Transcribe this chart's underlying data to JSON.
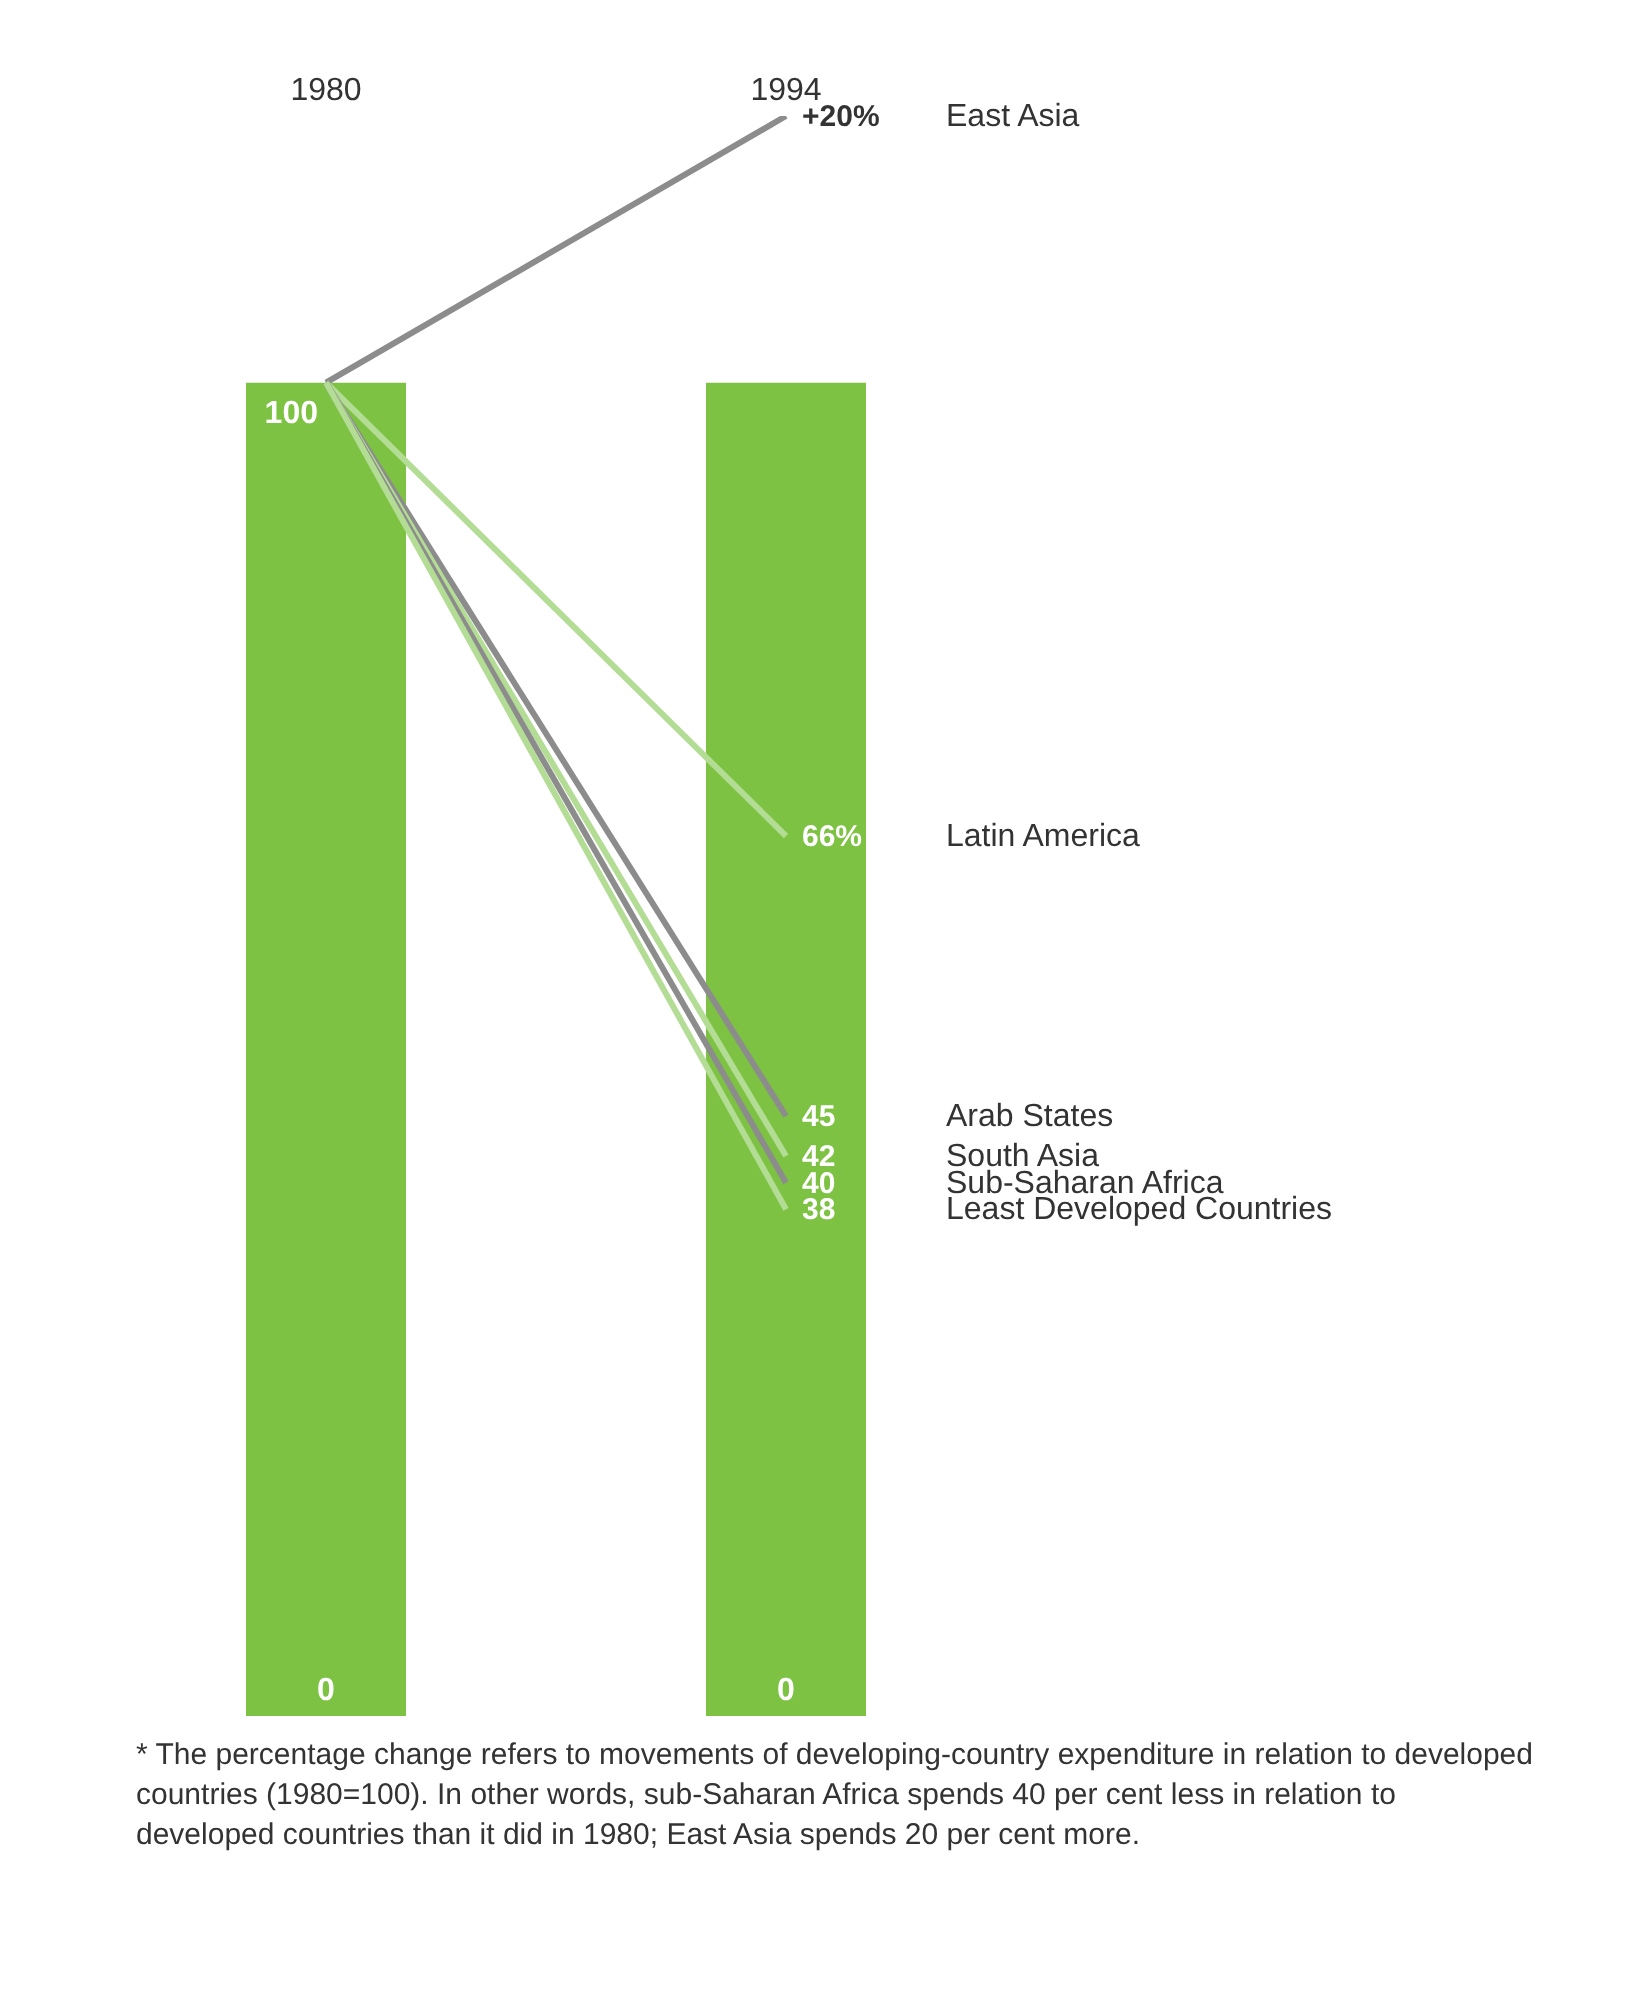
{
  "chart_data": {
    "type": "line",
    "categories": [
      "1980",
      "1994"
    ],
    "tick_labels": "x",
    "marker": "none",
    "series": [
      {
        "type": "bar",
        "color": "#7dc242",
        "values": [
          100,
          100
        ],
        "value_labels": [
          "100",
          null
        ]
      },
      {
        "name": "East Asia",
        "color": "#8c8c8c",
        "values": [
          100,
          120
        ]
      },
      {
        "name": "Latin America",
        "color": "#b3dc94",
        "values": [
          100,
          66
        ],
        "value_labels": [
          null,
          "66%"
        ]
      },
      {
        "name": "Arab States",
        "color": "#8c8c8c",
        "values": [
          100,
          45
        ],
        "value_labels": [
          null,
          "45"
        ]
      },
      {
        "name": "South Asia",
        "color": "#b3dc94",
        "values": [
          100,
          42
        ],
        "value_labels": [
          null,
          "42"
        ]
      },
      {
        "name": "Sub-Saharan Africa",
        "color": "#8c8c8c",
        "values": [
          100,
          40
        ],
        "value_labels": [
          null,
          "40"
        ]
      },
      {
        "name": "Least Developed Countries",
        "color": "#b3dc94",
        "values": [
          100,
          38
        ],
        "value_labels": [
          null,
          "38"
        ]
      }
    ],
    "annotations": [
      {
        "text": "+20%",
        "x": "1994",
        "y": 120
      },
      {
        "text": "0",
        "x": "1980",
        "y": 0
      },
      {
        "text": "0",
        "x": "1994",
        "y": 0
      },
      "* The percentage change refers to movements of developing-country expenditure in relation to developed countries (1980=100).  In other words, sub-Saharan Africa spends 40 per cent less in relation to developed countries than it did in 1980; East Asia spends 20 per cent more."
    ]
  }
}
